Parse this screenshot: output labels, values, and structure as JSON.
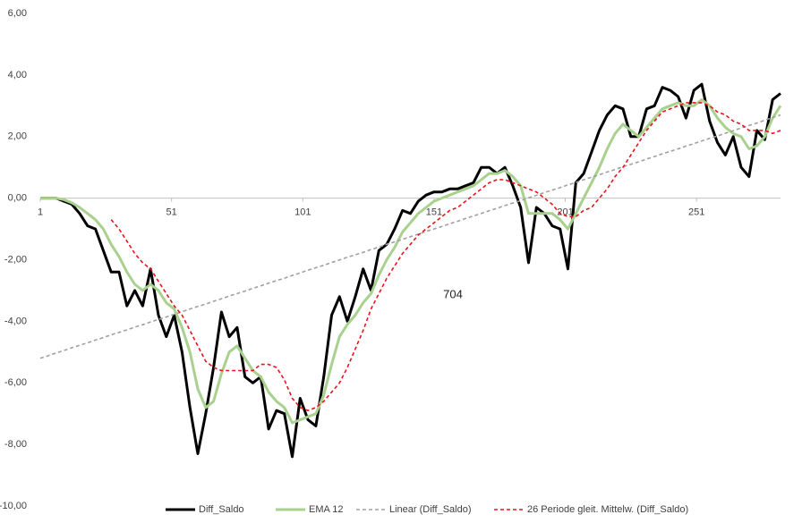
{
  "chart_data": {
    "type": "line",
    "annotations": [
      "704"
    ],
    "x": [
      1,
      4,
      7,
      10,
      13,
      16,
      19,
      22,
      25,
      28,
      31,
      34,
      37,
      40,
      43,
      46,
      49,
      52,
      55,
      58,
      61,
      64,
      67,
      70,
      73,
      76,
      79,
      82,
      85,
      88,
      91,
      94,
      97,
      100,
      103,
      106,
      109,
      112,
      115,
      118,
      121,
      124,
      127,
      130,
      133,
      136,
      139,
      142,
      145,
      148,
      151,
      154,
      157,
      160,
      163,
      166,
      169,
      172,
      175,
      178,
      181,
      184,
      187,
      190,
      193,
      196,
      199,
      202,
      205,
      208,
      211,
      214,
      217,
      220,
      223,
      226,
      229,
      232,
      235,
      238,
      241,
      244,
      247,
      250,
      253,
      256,
      259,
      262,
      265,
      268,
      271,
      274,
      277,
      280,
      283
    ],
    "xlim": [
      1,
      283
    ],
    "xticks": [
      1,
      51,
      101,
      151,
      201,
      251
    ],
    "ylim": [
      -10,
      6
    ],
    "yticks": [
      {
        "value": -10,
        "label": "-10,00"
      },
      {
        "value": -8,
        "label": "-8,00"
      },
      {
        "value": -6,
        "label": "-6,00"
      },
      {
        "value": -4,
        "label": "-4,00"
      },
      {
        "value": -2,
        "label": "-2,00"
      },
      {
        "value": 0,
        "label": "0,00"
      },
      {
        "value": 2,
        "label": "2,00"
      },
      {
        "value": 4,
        "label": "4,00"
      },
      {
        "value": 6,
        "label": "6,00"
      }
    ],
    "grid": false,
    "legend": "bottom",
    "series": [
      {
        "name": "Diff_Saldo",
        "color": "#000000",
        "dash": false,
        "values": [
          0,
          0,
          0,
          -0.1,
          -0.2,
          -0.5,
          -0.9,
          -1.0,
          -1.7,
          -2.4,
          -2.4,
          -3.5,
          -3.0,
          -3.5,
          -2.3,
          -3.8,
          -4.5,
          -3.8,
          -5.0,
          -6.8,
          -8.3,
          -7.0,
          -5.5,
          -3.7,
          -4.5,
          -4.2,
          -5.8,
          -6.0,
          -5.8,
          -7.5,
          -6.9,
          -7.0,
          -8.4,
          -6.5,
          -7.2,
          -7.4,
          -5.8,
          -3.8,
          -3.2,
          -4.0,
          -3.2,
          -2.3,
          -3.0,
          -1.7,
          -1.5,
          -1.0,
          -0.4,
          -0.5,
          -0.1,
          0.1,
          0.2,
          0.2,
          0.3,
          0.3,
          0.4,
          0.5,
          1.0,
          1.0,
          0.8,
          1.0,
          0.4,
          -0.3,
          -2.1,
          -0.3,
          -0.5,
          -0.9,
          -1.0,
          -2.3,
          0.5,
          0.8,
          1.5,
          2.2,
          2.7,
          3.0,
          2.9,
          2.0,
          2.0,
          2.9,
          3.0,
          3.6,
          3.5,
          3.3,
          2.6,
          3.5,
          3.7,
          2.5,
          1.8,
          1.4,
          2.0,
          1.0,
          0.7,
          2.2,
          1.9,
          3.2,
          3.4
        ]
      },
      {
        "name": "EMA 12",
        "color": "#a9d18e",
        "dash": false,
        "values": [
          0,
          0,
          0,
          -0.05,
          -0.15,
          -0.3,
          -0.5,
          -0.7,
          -1.0,
          -1.5,
          -1.9,
          -2.4,
          -2.8,
          -3.0,
          -2.8,
          -3.0,
          -3.4,
          -3.6,
          -4.2,
          -5.0,
          -6.2,
          -6.8,
          -6.6,
          -5.7,
          -5.0,
          -4.8,
          -5.2,
          -5.6,
          -5.8,
          -6.3,
          -6.6,
          -6.8,
          -7.3,
          -7.2,
          -7.1,
          -7.0,
          -6.4,
          -5.4,
          -4.5,
          -4.1,
          -3.8,
          -3.4,
          -3.1,
          -2.5,
          -2.0,
          -1.6,
          -1.1,
          -0.8,
          -0.5,
          -0.3,
          -0.1,
          0.0,
          0.1,
          0.2,
          0.3,
          0.4,
          0.6,
          0.8,
          0.8,
          0.9,
          0.7,
          0.4,
          -0.5,
          -0.5,
          -0.5,
          -0.5,
          -0.7,
          -1.0,
          -0.5,
          0.0,
          0.5,
          1.0,
          1.6,
          2.1,
          2.4,
          2.2,
          2.0,
          2.3,
          2.6,
          2.9,
          3.0,
          3.1,
          3.0,
          3.0,
          3.2,
          3.0,
          2.6,
          2.3,
          2.1,
          2.0,
          1.6,
          1.7,
          2.0,
          2.6,
          3.0
        ]
      },
      {
        "name": "Linear (Diff_Saldo)",
        "color": "#a0a0a0",
        "dash": true,
        "values": [
          -5.2,
          -5.12,
          -5.03,
          -4.95,
          -4.86,
          -4.78,
          -4.7,
          -4.61,
          -4.53,
          -4.44,
          -4.36,
          -4.28,
          -4.19,
          -4.11,
          -4.02,
          -3.94,
          -3.86,
          -3.77,
          -3.69,
          -3.6,
          -3.52,
          -3.44,
          -3.35,
          -3.27,
          -3.18,
          -3.1,
          -3.02,
          -2.93,
          -2.85,
          -2.76,
          -2.68,
          -2.6,
          -2.51,
          -2.43,
          -2.34,
          -2.26,
          -2.18,
          -2.09,
          -2.01,
          -1.92,
          -1.84,
          -1.76,
          -1.67,
          -1.59,
          -1.5,
          -1.42,
          -1.34,
          -1.25,
          -1.17,
          -1.08,
          -1.0,
          -0.92,
          -0.83,
          -0.75,
          -0.66,
          -0.58,
          -0.5,
          -0.41,
          -0.33,
          -0.24,
          -0.16,
          -0.08,
          0.01,
          0.09,
          0.18,
          0.26,
          0.34,
          0.43,
          0.51,
          0.6,
          0.68,
          0.76,
          0.85,
          0.93,
          1.02,
          1.1,
          1.18,
          1.27,
          1.35,
          1.44,
          1.52,
          1.6,
          1.69,
          1.77,
          1.86,
          1.94,
          2.02,
          2.11,
          2.19,
          2.28,
          2.36,
          2.44,
          2.53,
          2.62,
          2.7
        ]
      },
      {
        "name": "26 Periode gleit. Mittelw. (Diff_Saldo)",
        "color": "#e8141b",
        "dash": true,
        "values": [
          null,
          null,
          null,
          null,
          null,
          null,
          null,
          null,
          null,
          -0.7,
          -1.0,
          -1.4,
          -1.8,
          -2.1,
          -2.3,
          -2.7,
          -3.1,
          -3.5,
          -3.8,
          -4.3,
          -4.8,
          -5.3,
          -5.5,
          -5.6,
          -5.6,
          -5.6,
          -5.6,
          -5.6,
          -5.4,
          -5.4,
          -5.5,
          -5.9,
          -6.5,
          -6.8,
          -6.9,
          -6.8,
          -6.6,
          -6.3,
          -6.0,
          -5.5,
          -4.9,
          -4.3,
          -3.6,
          -3.1,
          -2.6,
          -2.2,
          -1.8,
          -1.5,
          -1.2,
          -1.0,
          -0.8,
          -0.6,
          -0.4,
          -0.3,
          -0.1,
          0.1,
          0.3,
          0.5,
          0.6,
          0.6,
          0.5,
          0.4,
          0.3,
          0.2,
          0.0,
          -0.2,
          -0.5,
          -0.6,
          -0.6,
          -0.4,
          -0.3,
          0.0,
          0.3,
          0.7,
          1.0,
          1.4,
          1.8,
          2.2,
          2.5,
          2.8,
          2.9,
          3.0,
          3.1,
          3.1,
          3.1,
          3.0,
          2.8,
          2.7,
          2.5,
          2.4,
          2.2,
          2.2,
          2.2,
          2.1,
          2.2
        ]
      }
    ]
  }
}
